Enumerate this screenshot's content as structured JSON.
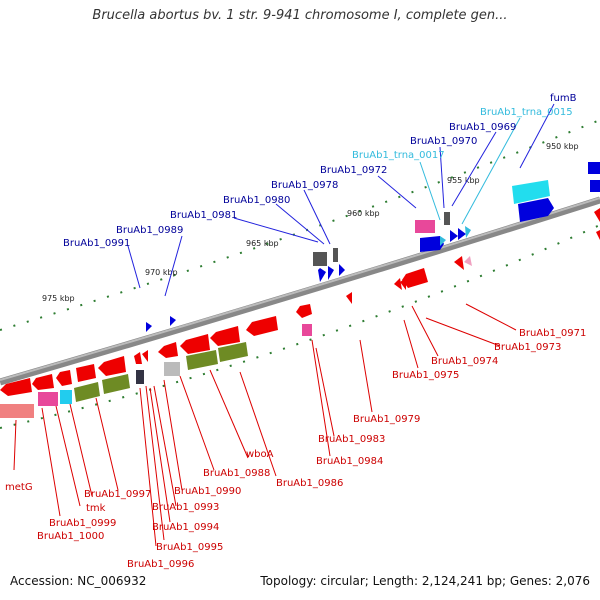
{
  "title": "Brucella abortus bv. 1 str. 9-941 chromosome I, complete gen...",
  "footer": {
    "accession": "Accession: NC_006932",
    "topology": "Topology: circular; Length: 2,124,241 bp; Genes: 2,076"
  },
  "ticks": [
    "975 kbp",
    "970 kbp",
    "965 kbp",
    "960 kbp",
    "955 kbp",
    "950 kbp"
  ],
  "top_labels": [
    "BruAb1_0991",
    "BruAb1_0989",
    "BruAb1_0981",
    "BruAb1_0980",
    "BruAb1_0978",
    "BruAb1_0972",
    "BruAb1_trna_0017",
    "BruAb1_0970",
    "BruAb1_0969",
    "BruAb1_trna_0015",
    "fumB"
  ],
  "right_labels": [
    "BruAb1_0971",
    "BruAb1_0973",
    "BruAb1_0974",
    "BruAb1_0975"
  ],
  "bottom_labels": [
    "BruAb1_0979",
    "BruAb1_0983",
    "BruAb1_0984",
    "BruAb1_0986",
    "wboA",
    "BruAb1_0988",
    "BruAb1_0990",
    "BruAb1_0993",
    "BruAb1_0994",
    "BruAb1_0995",
    "BruAb1_0996",
    "BruAb1_0997",
    "tmk",
    "BruAb1_0999",
    "BruAb1_1000",
    "metG"
  ],
  "colors": {
    "backbone": "#777777",
    "forward": "#0000dd",
    "reverse": "#ee0000",
    "trna": "#33bbdd",
    "label_red": "#cc0000",
    "label_blue": "#000099",
    "label_cyan": "#33bbdd",
    "olive": "#6e8b24",
    "pink": "#e8489a",
    "gray_feature": "#555555",
    "tick_green": "#2e7d32"
  }
}
